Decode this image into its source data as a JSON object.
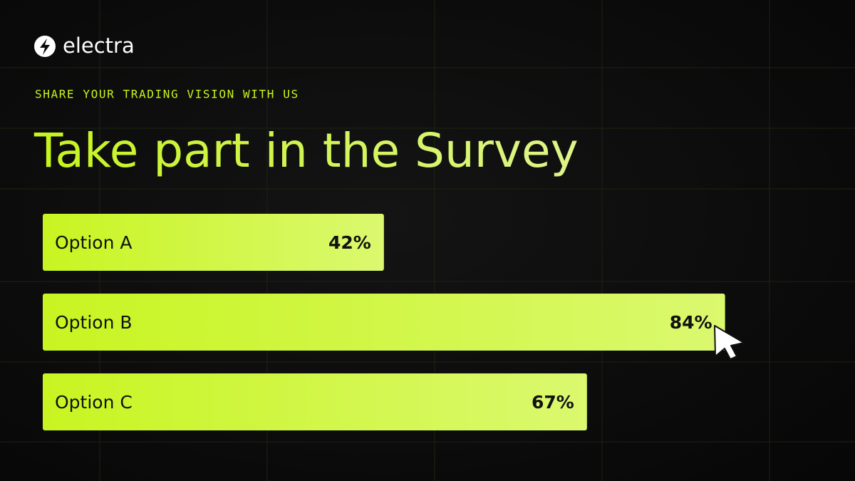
{
  "brand": "electra",
  "chart_data": {
    "type": "bar",
    "orientation": "horizontal",
    "subtitle": "SHARE YOUR TRADING VISION WITH US",
    "title": "Take part in the Survey",
    "categories": [
      "Option A",
      "Option B",
      "Option C"
    ],
    "values": [
      42,
      84,
      67
    ],
    "value_labels": [
      "42%",
      "84%",
      "67%"
    ],
    "color": "#c8f521"
  }
}
